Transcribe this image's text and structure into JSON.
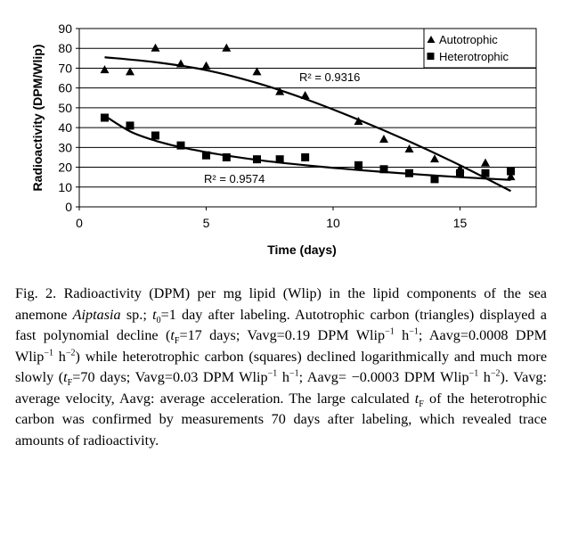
{
  "chart_data": {
    "type": "scatter",
    "xlabel": "Time (days)",
    "ylabel": "Radioactivity (DPM/Wlip)",
    "xlim": [
      0,
      18
    ],
    "ylim": [
      0,
      90
    ],
    "x_ticks": [
      "0",
      "5",
      "10",
      "15"
    ],
    "y_ticks": [
      "0",
      "10",
      "20",
      "30",
      "40",
      "50",
      "60",
      "70",
      "80",
      "90"
    ],
    "legend_position": "top-right",
    "series": [
      {
        "name": "Autotrophic",
        "marker": "triangle",
        "x": [
          1,
          2,
          3,
          4,
          5,
          5.8,
          7,
          7.9,
          8.9,
          11,
          12,
          13,
          14,
          15,
          16,
          17
        ],
        "values": [
          69,
          68,
          80,
          72,
          71,
          80,
          68,
          58,
          56,
          43,
          34,
          29,
          24,
          19,
          22,
          15
        ],
        "trendline": {
          "type": "polynomial",
          "r2_label": "R² = 0.9316",
          "x": [
            1,
            3,
            5,
            7,
            9,
            11,
            13,
            15,
            17
          ],
          "values": [
            75.5,
            73,
            69,
            62.5,
            54,
            44,
            33,
            21,
            8
          ]
        }
      },
      {
        "name": "Heterotrophic",
        "marker": "square",
        "x": [
          1,
          2,
          3,
          4,
          5,
          5.8,
          7,
          7.9,
          8.9,
          11,
          12,
          13,
          14,
          15,
          16,
          17
        ],
        "values": [
          45,
          41,
          36,
          31,
          26,
          25,
          24,
          24,
          25,
          21,
          19,
          17,
          14,
          17,
          17,
          18
        ],
        "trendline": {
          "type": "logarithmic",
          "r2_label": "R² = 0.9574",
          "x": [
            1,
            2,
            3,
            4,
            5,
            6,
            7,
            8,
            9,
            10,
            11,
            12,
            13,
            14,
            15,
            16,
            17
          ],
          "values": [
            46,
            38.1,
            33.4,
            30.1,
            27.6,
            25.5,
            23.7,
            22.2,
            20.9,
            19.7,
            18.6,
            17.6,
            16.7,
            15.8,
            15.0,
            14.3,
            13.6
          ]
        }
      }
    ]
  },
  "caption": {
    "fig_label": "Fig. 2.",
    "text_before_species": " Radioactivity (DPM) per mg lipid (Wlip) in the lipid components of the sea anemone ",
    "species": "Aiptasia",
    "text_after_species": " sp.; ",
    "t0_symbol": "t",
    "t0_sub": "0",
    "t0_value": "=1 day after labeling. Autotrophic carbon (triangles) displayed a fast polynomial decline (",
    "tf_symbol": "t",
    "tf_sub": "F",
    "auto_tf": "=17 days; Vavg=0.19 DPM Wlip",
    "auto_v_unit_mid": " h",
    "auto_a": "; Aavg=0.0008 DPM Wlip",
    "auto_a_unit_mid": " h",
    "auto_close": ") while heterotrophic carbon (squares) declined logarithmically and much more slowly (",
    "het_tf": "=70 days; Vavg=0.03 DPM Wlip",
    "het_v_unit_mid": " h",
    "het_a": "; Aavg= −0.0003 DPM Wlip",
    "het_a_unit_mid": " h",
    "het_close": "). Vavg: average velocity, Aavg: average acceleration. The large calculated ",
    "tf2_symbol": "t",
    "tf2_sub": "F",
    "ending": " of the heterotrophic carbon was confirmed by measurements 70 days after labeling, which revealed trace amounts of radioactivity.",
    "exp_minus1": "−1",
    "exp_minus2": "−2"
  }
}
